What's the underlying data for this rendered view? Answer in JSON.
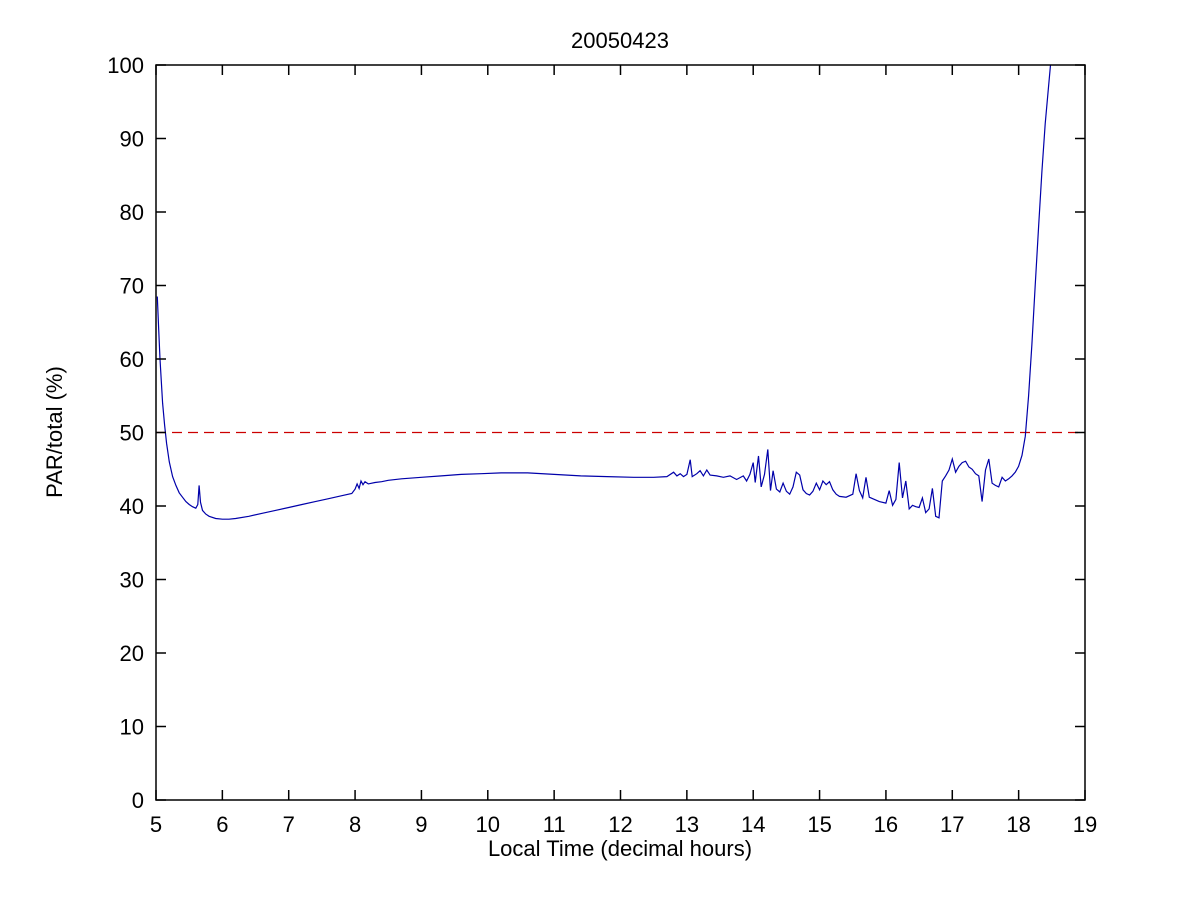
{
  "figure": {
    "background": "#ffffff"
  },
  "chart_data": {
    "type": "line",
    "title": "20050423",
    "xlabel": "Local Time (decimal hours)",
    "ylabel": "PAR/total (%)",
    "xlim": [
      5,
      19
    ],
    "ylim": [
      0,
      100
    ],
    "xticks": [
      5,
      6,
      7,
      8,
      9,
      10,
      11,
      12,
      13,
      14,
      15,
      16,
      17,
      18,
      19
    ],
    "yticks": [
      0,
      10,
      20,
      30,
      40,
      50,
      60,
      70,
      80,
      90,
      100
    ],
    "grid": false,
    "legend": "none",
    "series": [
      {
        "name": "fifty-percent-reference",
        "color": "#cc0000",
        "style": "dashed",
        "points": [
          [
            5,
            50
          ],
          [
            19,
            50
          ]
        ]
      },
      {
        "name": "par-total-ratio",
        "color": "#0000aa",
        "style": "solid",
        "points": [
          [
            5.02,
            68.5
          ],
          [
            5.04,
            64.0
          ],
          [
            5.06,
            60.0
          ],
          [
            5.08,
            57.0
          ],
          [
            5.1,
            54.0
          ],
          [
            5.13,
            51.0
          ],
          [
            5.16,
            48.5
          ],
          [
            5.2,
            46.0
          ],
          [
            5.25,
            44.0
          ],
          [
            5.3,
            42.8
          ],
          [
            5.35,
            41.8
          ],
          [
            5.4,
            41.2
          ],
          [
            5.45,
            40.6
          ],
          [
            5.5,
            40.2
          ],
          [
            5.55,
            39.9
          ],
          [
            5.6,
            39.7
          ],
          [
            5.63,
            40.2
          ],
          [
            5.65,
            42.8
          ],
          [
            5.67,
            40.5
          ],
          [
            5.7,
            39.4
          ],
          [
            5.75,
            38.9
          ],
          [
            5.8,
            38.6
          ],
          [
            5.9,
            38.3
          ],
          [
            6.0,
            38.2
          ],
          [
            6.1,
            38.2
          ],
          [
            6.2,
            38.3
          ],
          [
            6.4,
            38.6
          ],
          [
            6.6,
            39.0
          ],
          [
            6.8,
            39.4
          ],
          [
            7.0,
            39.8
          ],
          [
            7.2,
            40.2
          ],
          [
            7.4,
            40.6
          ],
          [
            7.6,
            41.0
          ],
          [
            7.8,
            41.4
          ],
          [
            7.95,
            41.7
          ],
          [
            8.0,
            42.3
          ],
          [
            8.03,
            43.0
          ],
          [
            8.06,
            42.4
          ],
          [
            8.09,
            43.4
          ],
          [
            8.12,
            42.9
          ],
          [
            8.15,
            43.3
          ],
          [
            8.2,
            43.0
          ],
          [
            8.3,
            43.2
          ],
          [
            8.4,
            43.3
          ],
          [
            8.5,
            43.5
          ],
          [
            8.7,
            43.7
          ],
          [
            9.0,
            43.9
          ],
          [
            9.3,
            44.1
          ],
          [
            9.6,
            44.3
          ],
          [
            9.9,
            44.4
          ],
          [
            10.2,
            44.5
          ],
          [
            10.6,
            44.5
          ],
          [
            11.0,
            44.3
          ],
          [
            11.4,
            44.1
          ],
          [
            11.8,
            44.0
          ],
          [
            12.2,
            43.9
          ],
          [
            12.5,
            43.9
          ],
          [
            12.7,
            44.0
          ],
          [
            12.8,
            44.6
          ],
          [
            12.85,
            44.1
          ],
          [
            12.9,
            44.4
          ],
          [
            12.95,
            44.0
          ],
          [
            13.0,
            44.3
          ],
          [
            13.05,
            46.3
          ],
          [
            13.08,
            44.0
          ],
          [
            13.15,
            44.4
          ],
          [
            13.2,
            44.8
          ],
          [
            13.25,
            44.1
          ],
          [
            13.3,
            44.9
          ],
          [
            13.35,
            44.2
          ],
          [
            13.45,
            44.1
          ],
          [
            13.55,
            43.9
          ],
          [
            13.65,
            44.1
          ],
          [
            13.75,
            43.6
          ],
          [
            13.85,
            44.1
          ],
          [
            13.9,
            43.4
          ],
          [
            13.95,
            44.3
          ],
          [
            14.0,
            45.9
          ],
          [
            14.03,
            43.2
          ],
          [
            14.08,
            46.8
          ],
          [
            14.12,
            42.6
          ],
          [
            14.17,
            44.3
          ],
          [
            14.22,
            47.7
          ],
          [
            14.26,
            42.1
          ],
          [
            14.3,
            44.8
          ],
          [
            14.35,
            42.3
          ],
          [
            14.4,
            41.9
          ],
          [
            14.45,
            43.1
          ],
          [
            14.5,
            42.0
          ],
          [
            14.55,
            41.6
          ],
          [
            14.6,
            42.6
          ],
          [
            14.65,
            44.6
          ],
          [
            14.7,
            44.2
          ],
          [
            14.75,
            42.2
          ],
          [
            14.8,
            41.7
          ],
          [
            14.85,
            41.5
          ],
          [
            14.9,
            42.0
          ],
          [
            14.95,
            43.1
          ],
          [
            15.0,
            42.2
          ],
          [
            15.05,
            43.4
          ],
          [
            15.1,
            42.9
          ],
          [
            15.15,
            43.3
          ],
          [
            15.2,
            42.2
          ],
          [
            15.25,
            41.6
          ],
          [
            15.3,
            41.3
          ],
          [
            15.4,
            41.2
          ],
          [
            15.5,
            41.6
          ],
          [
            15.55,
            44.4
          ],
          [
            15.6,
            42.1
          ],
          [
            15.65,
            41.1
          ],
          [
            15.7,
            43.9
          ],
          [
            15.75,
            41.2
          ],
          [
            15.8,
            41.0
          ],
          [
            15.9,
            40.6
          ],
          [
            16.0,
            40.4
          ],
          [
            16.05,
            42.1
          ],
          [
            16.1,
            40.1
          ],
          [
            16.15,
            40.9
          ],
          [
            16.2,
            45.9
          ],
          [
            16.25,
            41.1
          ],
          [
            16.3,
            43.4
          ],
          [
            16.35,
            39.6
          ],
          [
            16.4,
            40.1
          ],
          [
            16.45,
            39.9
          ],
          [
            16.5,
            39.8
          ],
          [
            16.55,
            41.1
          ],
          [
            16.6,
            39.1
          ],
          [
            16.65,
            39.6
          ],
          [
            16.7,
            42.4
          ],
          [
            16.75,
            38.6
          ],
          [
            16.8,
            38.4
          ],
          [
            16.85,
            43.4
          ],
          [
            16.9,
            44.1
          ],
          [
            16.95,
            44.9
          ],
          [
            17.0,
            46.4
          ],
          [
            17.05,
            44.6
          ],
          [
            17.1,
            45.4
          ],
          [
            17.15,
            45.9
          ],
          [
            17.2,
            46.1
          ],
          [
            17.25,
            45.3
          ],
          [
            17.3,
            45.0
          ],
          [
            17.35,
            44.4
          ],
          [
            17.4,
            44.1
          ],
          [
            17.45,
            40.6
          ],
          [
            17.5,
            44.9
          ],
          [
            17.55,
            46.4
          ],
          [
            17.6,
            43.1
          ],
          [
            17.65,
            42.8
          ],
          [
            17.7,
            42.6
          ],
          [
            17.75,
            43.9
          ],
          [
            17.8,
            43.4
          ],
          [
            17.85,
            43.7
          ],
          [
            17.9,
            44.1
          ],
          [
            17.95,
            44.6
          ],
          [
            18.0,
            45.4
          ],
          [
            18.05,
            46.9
          ],
          [
            18.1,
            49.5
          ],
          [
            18.15,
            55.0
          ],
          [
            18.2,
            62.0
          ],
          [
            18.25,
            70.0
          ],
          [
            18.3,
            78.0
          ],
          [
            18.35,
            85.5
          ],
          [
            18.4,
            92.0
          ],
          [
            18.45,
            97.0
          ],
          [
            18.48,
            100.0
          ]
        ]
      }
    ]
  }
}
